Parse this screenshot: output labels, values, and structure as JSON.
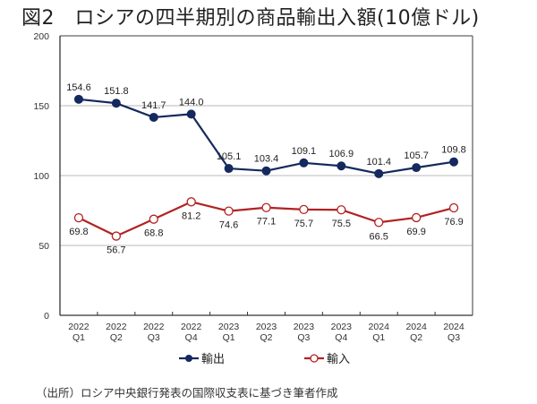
{
  "title": "図2　ロシアの四半期別の商品輸出入額(10億ドル)",
  "source": "（出所）ロシア中央銀行発表の国際収支表に基づき筆者作成",
  "chart_data": {
    "type": "line",
    "title": "図2　ロシアの四半期別の商品輸出入額(10億ドル)",
    "xlabel": "",
    "ylabel": "",
    "categories": [
      [
        "2022",
        "Q1"
      ],
      [
        "2022",
        "Q2"
      ],
      [
        "2022",
        "Q3"
      ],
      [
        "2022",
        "Q4"
      ],
      [
        "2023",
        "Q1"
      ],
      [
        "2023",
        "Q2"
      ],
      [
        "2023",
        "Q3"
      ],
      [
        "2023",
        "Q4"
      ],
      [
        "2024",
        "Q1"
      ],
      [
        "2024",
        "Q2"
      ],
      [
        "2024",
        "Q3"
      ]
    ],
    "ylim": [
      0,
      200
    ],
    "yticks": [
      0,
      50,
      100,
      150,
      200
    ],
    "grid": true,
    "legend_position": "bottom",
    "series": [
      {
        "name": "輸出",
        "color": "#14295e",
        "marker": "filled-circle",
        "label_position": "above",
        "values": [
          154.6,
          151.8,
          141.7,
          144.0,
          105.1,
          103.4,
          109.1,
          106.9,
          101.4,
          105.7,
          109.8
        ],
        "labels": [
          "154.6",
          "151.8",
          "141.7",
          "144.0",
          "105.1",
          "103.4",
          "109.1",
          "106.9",
          "101.4",
          "105.7",
          "109.8"
        ]
      },
      {
        "name": "輸入",
        "color": "#b22222",
        "marker": "open-circle",
        "label_position": "below",
        "values": [
          69.8,
          56.7,
          68.8,
          81.2,
          74.6,
          77.1,
          75.7,
          75.5,
          66.5,
          69.9,
          76.9
        ],
        "labels": [
          "69.8",
          "56.7",
          "68.8",
          "81.2",
          "74.6",
          "77.1",
          "75.7",
          "75.5",
          "66.5",
          "69.9",
          "76.9"
        ]
      }
    ]
  }
}
